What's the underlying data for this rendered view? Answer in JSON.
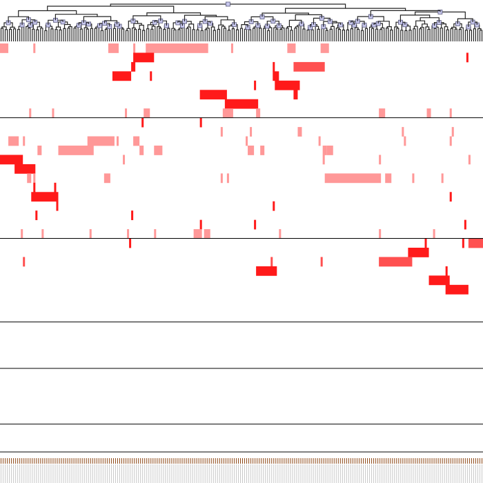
{
  "chart_data": {
    "type": "heatmap",
    "title": "",
    "xlabel": "",
    "ylabel": "",
    "n_columns": 232,
    "n_rows": 44,
    "colors": {
      "strong": "#ff1a1a",
      "medium": "#ff5050",
      "light": "#ff9898",
      "dendrogram": "#222222",
      "node_fill": "#c8c8ee",
      "leaf_tick": "#8b4513"
    },
    "row_groups_end": [
      8,
      21,
      30,
      35,
      41,
      44
    ],
    "cells": [
      {
        "row": 0,
        "c0": 0,
        "c1": 4,
        "level": "light"
      },
      {
        "row": 0,
        "c0": 16,
        "c1": 17,
        "level": "light"
      },
      {
        "row": 0,
        "c0": 52,
        "c1": 57,
        "level": "light"
      },
      {
        "row": 0,
        "c0": 64,
        "c1": 65,
        "level": "light"
      },
      {
        "row": 0,
        "c0": 70,
        "c1": 100,
        "level": "light"
      },
      {
        "row": 0,
        "c0": 111,
        "c1": 112,
        "level": "light"
      },
      {
        "row": 0,
        "c0": 138,
        "c1": 142,
        "level": "light"
      },
      {
        "row": 0,
        "c0": 154,
        "c1": 158,
        "level": "light"
      },
      {
        "row": 1,
        "c0": 64,
        "c1": 74,
        "level": "strong"
      },
      {
        "row": 1,
        "c0": 224,
        "c1": 225,
        "level": "strong"
      },
      {
        "row": 2,
        "c0": 63,
        "c1": 65,
        "level": "strong"
      },
      {
        "row": 2,
        "c0": 131,
        "c1": 132,
        "level": "strong"
      },
      {
        "row": 2,
        "c0": 141,
        "c1": 156,
        "level": "medium"
      },
      {
        "row": 3,
        "c0": 54,
        "c1": 63,
        "level": "strong"
      },
      {
        "row": 3,
        "c0": 72,
        "c1": 73,
        "level": "strong"
      },
      {
        "row": 3,
        "c0": 131,
        "c1": 134,
        "level": "strong"
      },
      {
        "row": 4,
        "c0": 122,
        "c1": 123,
        "level": "strong"
      },
      {
        "row": 4,
        "c0": 132,
        "c1": 144,
        "level": "strong"
      },
      {
        "row": 5,
        "c0": 96,
        "c1": 109,
        "level": "strong"
      },
      {
        "row": 5,
        "c0": 141,
        "c1": 143,
        "level": "strong"
      },
      {
        "row": 6,
        "c0": 108,
        "c1": 124,
        "level": "strong"
      },
      {
        "row": 7,
        "c0": 14,
        "c1": 15,
        "level": "light"
      },
      {
        "row": 7,
        "c0": 25,
        "c1": 26,
        "level": "light"
      },
      {
        "row": 7,
        "c0": 60,
        "c1": 61,
        "level": "light"
      },
      {
        "row": 7,
        "c0": 69,
        "c1": 72,
        "level": "light"
      },
      {
        "row": 7,
        "c0": 107,
        "c1": 112,
        "level": "light"
      },
      {
        "row": 7,
        "c0": 123,
        "c1": 125,
        "level": "light"
      },
      {
        "row": 7,
        "c0": 182,
        "c1": 185,
        "level": "light"
      },
      {
        "row": 7,
        "c0": 205,
        "c1": 207,
        "level": "light"
      },
      {
        "row": 7,
        "c0": 216,
        "c1": 217,
        "level": "light"
      },
      {
        "row": 8,
        "c0": 68,
        "c1": 69,
        "level": "strong"
      },
      {
        "row": 8,
        "c0": 96,
        "c1": 97,
        "level": "strong"
      },
      {
        "row": 9,
        "c0": 106,
        "c1": 107,
        "level": "light"
      },
      {
        "row": 9,
        "c0": 120,
        "c1": 121,
        "level": "light"
      },
      {
        "row": 9,
        "c0": 143,
        "c1": 145,
        "level": "light"
      },
      {
        "row": 9,
        "c0": 193,
        "c1": 194,
        "level": "light"
      },
      {
        "row": 9,
        "c0": 217,
        "c1": 218,
        "level": "light"
      },
      {
        "row": 10,
        "c0": 4,
        "c1": 9,
        "level": "light"
      },
      {
        "row": 10,
        "c0": 11,
        "c1": 12,
        "level": "light"
      },
      {
        "row": 10,
        "c0": 42,
        "c1": 55,
        "level": "light"
      },
      {
        "row": 10,
        "c0": 56,
        "c1": 57,
        "level": "light"
      },
      {
        "row": 10,
        "c0": 64,
        "c1": 67,
        "level": "light"
      },
      {
        "row": 10,
        "c0": 118,
        "c1": 119,
        "level": "light"
      },
      {
        "row": 10,
        "c0": 153,
        "c1": 154,
        "level": "light"
      },
      {
        "row": 10,
        "c0": 194,
        "c1": 195,
        "level": "light"
      },
      {
        "row": 10,
        "c0": 216,
        "c1": 217,
        "level": "light"
      },
      {
        "row": 11,
        "c0": 18,
        "c1": 20,
        "level": "light"
      },
      {
        "row": 11,
        "c0": 28,
        "c1": 45,
        "level": "light"
      },
      {
        "row": 11,
        "c0": 67,
        "c1": 69,
        "level": "light"
      },
      {
        "row": 11,
        "c0": 74,
        "c1": 78,
        "level": "light"
      },
      {
        "row": 11,
        "c0": 119,
        "c1": 122,
        "level": "light"
      },
      {
        "row": 11,
        "c0": 125,
        "c1": 127,
        "level": "light"
      },
      {
        "row": 11,
        "c0": 155,
        "c1": 157,
        "level": "light"
      },
      {
        "row": 11,
        "c0": 157,
        "c1": 160,
        "level": "light"
      },
      {
        "row": 12,
        "c0": 0,
        "c1": 11,
        "level": "strong"
      },
      {
        "row": 12,
        "c0": 59,
        "c1": 60,
        "level": "light"
      },
      {
        "row": 12,
        "c0": 155,
        "c1": 156,
        "level": "light"
      },
      {
        "row": 12,
        "c0": 182,
        "c1": 183,
        "level": "light"
      },
      {
        "row": 12,
        "c0": 225,
        "c1": 226,
        "level": "light"
      },
      {
        "row": 13,
        "c0": 7,
        "c1": 17,
        "level": "strong"
      },
      {
        "row": 14,
        "c0": 13,
        "c1": 15,
        "level": "light"
      },
      {
        "row": 14,
        "c0": 16,
        "c1": 17,
        "level": "light"
      },
      {
        "row": 14,
        "c0": 50,
        "c1": 53,
        "level": "light"
      },
      {
        "row": 14,
        "c0": 106,
        "c1": 107,
        "level": "light"
      },
      {
        "row": 14,
        "c0": 109,
        "c1": 110,
        "level": "light"
      },
      {
        "row": 14,
        "c0": 156,
        "c1": 183,
        "level": "light"
      },
      {
        "row": 14,
        "c0": 185,
        "c1": 188,
        "level": "light"
      },
      {
        "row": 14,
        "c0": 198,
        "c1": 199,
        "level": "light"
      },
      {
        "row": 14,
        "c0": 212,
        "c1": 213,
        "level": "light"
      },
      {
        "row": 15,
        "c0": 16,
        "c1": 17,
        "level": "strong"
      },
      {
        "row": 15,
        "c0": 26,
        "c1": 27,
        "level": "strong"
      },
      {
        "row": 16,
        "c0": 15,
        "c1": 28,
        "level": "strong"
      },
      {
        "row": 16,
        "c0": 216,
        "c1": 217,
        "level": "strong"
      },
      {
        "row": 17,
        "c0": 27,
        "c1": 28,
        "level": "strong"
      },
      {
        "row": 17,
        "c0": 131,
        "c1": 132,
        "level": "strong"
      },
      {
        "row": 18,
        "c0": 17,
        "c1": 18,
        "level": "strong"
      },
      {
        "row": 18,
        "c0": 63,
        "c1": 64,
        "level": "strong"
      },
      {
        "row": 19,
        "c0": 96,
        "c1": 97,
        "level": "strong"
      },
      {
        "row": 19,
        "c0": 122,
        "c1": 123,
        "level": "strong"
      },
      {
        "row": 19,
        "c0": 223,
        "c1": 224,
        "level": "strong"
      },
      {
        "row": 20,
        "c0": 10,
        "c1": 11,
        "level": "light"
      },
      {
        "row": 20,
        "c0": 20,
        "c1": 21,
        "level": "light"
      },
      {
        "row": 20,
        "c0": 43,
        "c1": 44,
        "level": "light"
      },
      {
        "row": 20,
        "c0": 61,
        "c1": 62,
        "level": "light"
      },
      {
        "row": 20,
        "c0": 74,
        "c1": 75,
        "level": "light"
      },
      {
        "row": 20,
        "c0": 93,
        "c1": 97,
        "level": "light"
      },
      {
        "row": 20,
        "c0": 98,
        "c1": 101,
        "level": "light"
      },
      {
        "row": 20,
        "c0": 134,
        "c1": 135,
        "level": "light"
      },
      {
        "row": 20,
        "c0": 182,
        "c1": 183,
        "level": "light"
      },
      {
        "row": 20,
        "c0": 208,
        "c1": 209,
        "level": "light"
      },
      {
        "row": 21,
        "c0": 62,
        "c1": 63,
        "level": "strong"
      },
      {
        "row": 21,
        "c0": 204,
        "c1": 205,
        "level": "strong"
      },
      {
        "row": 21,
        "c0": 222,
        "c1": 223,
        "level": "strong"
      },
      {
        "row": 21,
        "c0": 225,
        "c1": 232,
        "level": "medium"
      },
      {
        "row": 22,
        "c0": 196,
        "c1": 206,
        "level": "strong"
      },
      {
        "row": 23,
        "c0": 11,
        "c1": 12,
        "level": "medium"
      },
      {
        "row": 23,
        "c0": 130,
        "c1": 131,
        "level": "medium"
      },
      {
        "row": 23,
        "c0": 154,
        "c1": 155,
        "level": "medium"
      },
      {
        "row": 23,
        "c0": 182,
        "c1": 198,
        "level": "medium"
      },
      {
        "row": 24,
        "c0": 123,
        "c1": 133,
        "level": "strong"
      },
      {
        "row": 24,
        "c0": 214,
        "c1": 215,
        "level": "strong"
      },
      {
        "row": 25,
        "c0": 206,
        "c1": 216,
        "level": "strong"
      },
      {
        "row": 26,
        "c0": 214,
        "c1": 225,
        "level": "strong"
      }
    ]
  }
}
